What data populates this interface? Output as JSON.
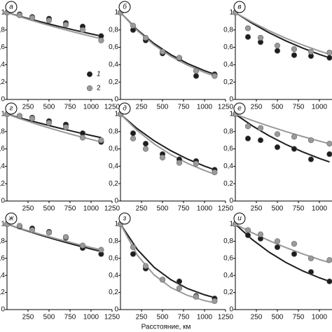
{
  "chart_data": [
    {
      "type": "scatter",
      "label": "а",
      "xlim": [
        0,
        1250
      ],
      "xticks": [
        250,
        500,
        750,
        1000,
        1250
      ],
      "ylim": [
        0,
        1
      ],
      "yticks": [
        {
          "value": 0,
          "label": "0"
        },
        {
          "value": 0.2,
          "label": "0,2"
        },
        {
          "value": 0.4,
          "label": "0,4"
        },
        {
          "value": 0.6,
          "label": "0,6"
        },
        {
          "value": 0.8,
          "label": "0,8"
        },
        {
          "value": 1,
          "label": "1"
        }
      ],
      "series": [
        {
          "name": "1",
          "color": "#1e1e1e",
          "x": [
            0,
            150,
            300,
            500,
            700,
            900,
            1120
          ],
          "values": [
            1,
            0.98,
            0.95,
            0.93,
            0.88,
            0.84,
            0.73
          ],
          "fit": {
            "x": [
              0,
              200,
              400,
              600,
              800,
              1000,
              1120
            ],
            "values": [
              1,
              0.945,
              0.894,
              0.845,
              0.799,
              0.755,
              0.73
            ]
          }
        },
        {
          "name": "2",
          "color": "#9a9a9a",
          "x": [
            0,
            150,
            300,
            500,
            700,
            900,
            1120
          ],
          "values": [
            1,
            0.97,
            0.94,
            0.91,
            0.86,
            0.8,
            0.68
          ],
          "fit": {
            "x": [
              0,
              200,
              400,
              600,
              800,
              1000,
              1120
            ],
            "values": [
              1,
              0.938,
              0.88,
              0.826,
              0.775,
              0.727,
              0.7
            ]
          }
        }
      ]
    },
    {
      "type": "scatter",
      "label": "б",
      "xlim": [
        0,
        1250
      ],
      "xticks": [
        250,
        500,
        750,
        1000,
        1250
      ],
      "ylim": [
        0,
        1
      ],
      "yticks": [
        {
          "value": 0,
          "label": "0"
        },
        {
          "value": 0.2,
          "label": "0,2"
        },
        {
          "value": 0.4,
          "label": "0,4"
        },
        {
          "value": 0.6,
          "label": "0,6"
        },
        {
          "value": 0.8,
          "label": "0,8"
        },
        {
          "value": 1,
          "label": "1"
        }
      ],
      "series": [
        {
          "color": "#1e1e1e",
          "x": [
            0,
            150,
            300,
            500,
            700,
            900,
            1120
          ],
          "values": [
            1,
            0.8,
            0.68,
            0.53,
            0.47,
            0.27,
            0.29
          ],
          "fit": {
            "x": [
              0,
              200,
              400,
              600,
              800,
              1000,
              1120
            ],
            "values": [
              1,
              0.802,
              0.643,
              0.515,
              0.413,
              0.331,
              0.29
            ]
          }
        },
        {
          "color": "#9a9a9a",
          "x": [
            0,
            150,
            300,
            500,
            700,
            900,
            1120
          ],
          "values": [
            1,
            0.85,
            0.71,
            0.55,
            0.48,
            0.33,
            0.27
          ],
          "fit": {
            "x": [
              0,
              200,
              400,
              600,
              800,
              1000,
              1120
            ],
            "values": [
              1,
              0.792,
              0.627,
              0.496,
              0.393,
              0.311,
              0.27
            ]
          }
        }
      ]
    },
    {
      "type": "scatter",
      "label": "в",
      "xlim": [
        0,
        1250
      ],
      "xticks": [
        250,
        500,
        750,
        1000,
        1250
      ],
      "ylim": [
        0,
        1
      ],
      "yticks": [
        {
          "value": 0,
          "label": "0"
        },
        {
          "value": 0.2,
          "label": "0,2"
        },
        {
          "value": 0.4,
          "label": "0,4"
        },
        {
          "value": 0.6,
          "label": "0,6"
        },
        {
          "value": 0.8,
          "label": "0,8"
        },
        {
          "value": 1,
          "label": "1"
        }
      ],
      "series": [
        {
          "color": "#1e1e1e",
          "x": [
            0,
            150,
            300,
            500,
            700,
            900,
            1120
          ],
          "values": [
            1,
            0.72,
            0.66,
            0.56,
            0.51,
            0.5,
            0.48
          ],
          "fit": {
            "x": [
              0,
              200,
              400,
              600,
              800,
              1000,
              1120
            ],
            "values": [
              1,
              0.877,
              0.769,
              0.675,
              0.592,
              0.519,
              0.48
            ]
          }
        },
        {
          "color": "#9a9a9a",
          "x": [
            0,
            150,
            300,
            500,
            700,
            900,
            1120
          ],
          "values": [
            1,
            0.82,
            0.71,
            0.62,
            0.58,
            0.55,
            0.54
          ],
          "fit": {
            "x": [
              0,
              200,
              400,
              600,
              800,
              1000,
              1120
            ],
            "values": [
              1,
              0.89,
              0.792,
              0.705,
              0.627,
              0.558,
              0.52
            ]
          }
        }
      ]
    },
    {
      "type": "scatter",
      "label": "г",
      "xlim": [
        0,
        1250
      ],
      "xticks": [
        250,
        500,
        750,
        1000,
        1250
      ],
      "ylim": [
        0,
        1
      ],
      "yticks": [
        {
          "value": 0,
          "label": "0"
        },
        {
          "value": 0.2,
          "label": "0,2"
        },
        {
          "value": 0.4,
          "label": "0,4"
        },
        {
          "value": 0.6,
          "label": "0,6"
        },
        {
          "value": 0.8,
          "label": "0,8"
        },
        {
          "value": 1,
          "label": "1"
        }
      ],
      "series": [
        {
          "color": "#1e1e1e",
          "x": [
            0,
            150,
            300,
            500,
            700,
            900,
            1120
          ],
          "values": [
            1,
            0.98,
            0.96,
            0.92,
            0.88,
            0.78,
            0.68
          ],
          "fit": {
            "x": [
              0,
              200,
              400,
              600,
              800,
              1000,
              1120
            ],
            "values": [
              1,
              0.945,
              0.894,
              0.845,
              0.799,
              0.755,
              0.73
            ]
          }
        },
        {
          "color": "#9a9a9a",
          "x": [
            0,
            150,
            300,
            500,
            700,
            900,
            1120
          ],
          "values": [
            1,
            0.98,
            0.95,
            0.9,
            0.85,
            0.73,
            0.7
          ],
          "fit": {
            "x": [
              0,
              200,
              400,
              600,
              800,
              1000,
              1120
            ],
            "values": [
              1,
              0.933,
              0.871,
              0.813,
              0.759,
              0.709,
              0.68
            ]
          }
        }
      ]
    },
    {
      "type": "scatter",
      "label": "д",
      "xlim": [
        0,
        1250
      ],
      "xticks": [
        250,
        500,
        750,
        1000,
        1250
      ],
      "ylim": [
        0,
        1
      ],
      "yticks": [
        {
          "value": 0,
          "label": "0"
        },
        {
          "value": 0.2,
          "label": "0,2"
        },
        {
          "value": 0.4,
          "label": "0,4"
        },
        {
          "value": 0.6,
          "label": "0,6"
        },
        {
          "value": 0.8,
          "label": "0,8"
        },
        {
          "value": 1,
          "label": "1"
        }
      ],
      "series": [
        {
          "color": "#1e1e1e",
          "x": [
            0,
            150,
            300,
            500,
            700,
            900,
            1120
          ],
          "values": [
            1,
            0.78,
            0.66,
            0.54,
            0.48,
            0.46,
            0.36
          ],
          "fit": {
            "x": [
              0,
              200,
              400,
              600,
              800,
              1000,
              1120
            ],
            "values": [
              1,
              0.833,
              0.694,
              0.579,
              0.482,
              0.402,
              0.36
            ]
          }
        },
        {
          "color": "#9a9a9a",
          "x": [
            0,
            150,
            300,
            500,
            700,
            900,
            1120
          ],
          "values": [
            1,
            0.72,
            0.6,
            0.5,
            0.44,
            0.43,
            0.33
          ],
          "fit": {
            "x": [
              0,
              200,
              400,
              600,
              800,
              1000,
              1120
            ],
            "values": [
              1,
              0.811,
              0.658,
              0.534,
              0.433,
              0.351,
              0.31
            ]
          }
        }
      ]
    },
    {
      "type": "scatter",
      "label": "е",
      "xlim": [
        0,
        1250
      ],
      "xticks": [
        250,
        500,
        750,
        1000,
        1250
      ],
      "ylim": [
        0,
        1
      ],
      "yticks": [
        {
          "value": 0,
          "label": "0"
        },
        {
          "value": 0.2,
          "label": "0,2"
        },
        {
          "value": 0.4,
          "label": "0,4"
        },
        {
          "value": 0.6,
          "label": "0,6"
        },
        {
          "value": 0.8,
          "label": "0,8"
        },
        {
          "value": 1,
          "label": "1"
        }
      ],
      "series": [
        {
          "color": "#1e1e1e",
          "x": [
            0,
            150,
            300,
            500,
            700,
            900,
            1120
          ],
          "values": [
            1,
            0.72,
            0.7,
            0.62,
            0.6,
            0.48,
            0.54
          ],
          "fit": {
            "x": [
              0,
              200,
              400,
              600,
              800,
              1000,
              1120
            ],
            "values": [
              1,
              0.867,
              0.752,
              0.652,
              0.566,
              0.49,
              0.45
            ]
          }
        },
        {
          "color": "#9a9a9a",
          "x": [
            0,
            150,
            300,
            500,
            700,
            900,
            1120
          ],
          "values": [
            1,
            0.86,
            0.84,
            0.77,
            0.74,
            0.7,
            0.66
          ],
          "fit": {
            "x": [
              0,
              200,
              400,
              600,
              800,
              1000,
              1120
            ],
            "values": [
              1,
              0.928,
              0.862,
              0.8,
              0.743,
              0.69,
              0.66
            ]
          }
        }
      ]
    },
    {
      "type": "scatter",
      "label": "ж",
      "xlim": [
        0,
        1250
      ],
      "xticks": [
        250,
        500,
        750,
        1000,
        1250
      ],
      "ylim": [
        0,
        1
      ],
      "yticks": [
        {
          "value": 0,
          "label": "0"
        },
        {
          "value": 0.2,
          "label": "0,2"
        },
        {
          "value": 0.4,
          "label": "0,4"
        },
        {
          "value": 0.6,
          "label": "0,6"
        },
        {
          "value": 0.8,
          "label": "0,8"
        },
        {
          "value": 1,
          "label": "1"
        }
      ],
      "series": [
        {
          "color": "#1e1e1e",
          "x": [
            0,
            150,
            300,
            500,
            700,
            900,
            1120
          ],
          "values": [
            1,
            0.97,
            0.95,
            0.91,
            0.84,
            0.72,
            0.65
          ],
          "fit": {
            "x": [
              0,
              200,
              400,
              600,
              800,
              1000,
              1120
            ],
            "values": [
              1,
              0.933,
              0.871,
              0.813,
              0.759,
              0.709,
              0.68
            ]
          }
        },
        {
          "color": "#9a9a9a",
          "x": [
            0,
            150,
            300,
            500,
            700,
            900,
            1120
          ],
          "values": [
            1,
            0.98,
            0.93,
            0.9,
            0.85,
            0.75,
            0.7
          ],
          "fit": {
            "x": [
              0,
              200,
              400,
              600,
              800,
              1000,
              1120
            ],
            "values": [
              1,
              0.938,
              0.88,
              0.826,
              0.775,
              0.727,
              0.7
            ]
          }
        }
      ]
    },
    {
      "type": "scatter",
      "label": "з",
      "xlabel": "Расстояние, км",
      "xlim": [
        0,
        1250
      ],
      "xticks": [
        250,
        500,
        750,
        1000,
        1250
      ],
      "ylim": [
        0,
        1
      ],
      "yticks": [
        {
          "value": 0,
          "label": "0"
        },
        {
          "value": 0.2,
          "label": "0,2"
        },
        {
          "value": 0.4,
          "label": "0,4"
        },
        {
          "value": 0.6,
          "label": "0,6"
        },
        {
          "value": 0.8,
          "label": "0,8"
        },
        {
          "value": 1,
          "label": "1"
        }
      ],
      "series": [
        {
          "color": "#1e1e1e",
          "x": [
            0,
            150,
            300,
            500,
            700,
            900,
            1120
          ],
          "values": [
            1,
            0.65,
            0.48,
            0.35,
            0.33,
            0.16,
            0.13
          ],
          "fit": {
            "x": [
              0,
              200,
              400,
              600,
              800,
              1000,
              1120
            ],
            "values": [
              1,
              0.704,
              0.495,
              0.349,
              0.245,
              0.173,
              0.14
            ]
          }
        },
        {
          "color": "#9a9a9a",
          "x": [
            0,
            150,
            300,
            500,
            700,
            900,
            1120
          ],
          "values": [
            1,
            0.73,
            0.51,
            0.35,
            0.25,
            0.15,
            0.1
          ],
          "fit": {
            "x": [
              0,
              200,
              400,
              600,
              800,
              1000,
              1120
            ],
            "values": [
              1,
              0.637,
              0.406,
              0.258,
              0.165,
              0.105,
              0.08
            ]
          }
        }
      ]
    },
    {
      "type": "scatter",
      "label": "и",
      "xlim": [
        0,
        1250
      ],
      "xticks": [
        250,
        500,
        750,
        1000,
        1250
      ],
      "ylim": [
        0,
        1
      ],
      "yticks": [
        {
          "value": 0,
          "label": "0"
        },
        {
          "value": 0.2,
          "label": "0,2"
        },
        {
          "value": 0.4,
          "label": "0,4"
        },
        {
          "value": 0.6,
          "label": "0,6"
        },
        {
          "value": 0.8,
          "label": "0,8"
        },
        {
          "value": 1,
          "label": "1"
        }
      ],
      "series": [
        {
          "color": "#1e1e1e",
          "x": [
            0,
            150,
            300,
            500,
            700,
            900,
            1120
          ],
          "values": [
            1,
            0.87,
            0.83,
            0.73,
            0.65,
            0.44,
            0.33
          ],
          "fit": {
            "x": [
              0,
              200,
              400,
              600,
              800,
              1000,
              1120
            ],
            "values": [
              1,
              0.82,
              0.673,
              0.552,
              0.453,
              0.372,
              0.33
            ]
          }
        },
        {
          "color": "#9a9a9a",
          "x": [
            0,
            150,
            300,
            500,
            700,
            900,
            1120
          ],
          "values": [
            1,
            0.93,
            0.88,
            0.8,
            0.77,
            0.6,
            0.58
          ],
          "fit": {
            "x": [
              0,
              200,
              400,
              600,
              800,
              1000,
              1120
            ],
            "values": [
              1,
              0.899,
              0.808,
              0.726,
              0.652,
              0.586,
              0.55
            ]
          }
        }
      ]
    }
  ]
}
